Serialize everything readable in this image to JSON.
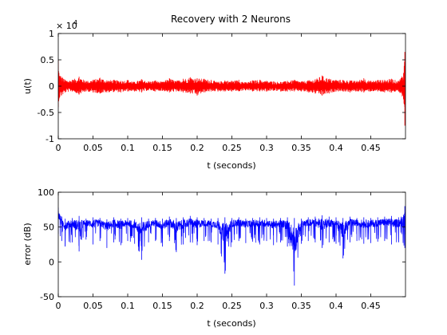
{
  "chart_data": [
    {
      "type": "line",
      "title": "Recovery with 2 Neurons",
      "xlabel": "t (seconds)",
      "ylabel": "u(t)",
      "y_scale_note": "× 10",
      "y_scale_exponent": "4",
      "xlim": [
        0,
        0.5
      ],
      "ylim": [
        -1,
        1
      ],
      "xticks": [
        0,
        0.05,
        0.1,
        0.15,
        0.2,
        0.25,
        0.3,
        0.35,
        0.4,
        0.45
      ],
      "xtick_labels": [
        "0",
        "0.05",
        "0.1",
        "0.15",
        "0.2",
        "0.25",
        "0.3",
        "0.35",
        "0.4",
        "0.45"
      ],
      "yticks": [
        -1,
        -0.5,
        0,
        0.5,
        1
      ],
      "ytick_labels": [
        "-1",
        "-0.5",
        "0",
        "0.5",
        "1"
      ],
      "color": "#ff0000",
      "series": [
        {
          "x": [
            0,
            0.001,
            0.01,
            0.02,
            0.03,
            0.04,
            0.05,
            0.06,
            0.07,
            0.08,
            0.09,
            0.1,
            0.11,
            0.12,
            0.13,
            0.14,
            0.15,
            0.16,
            0.17,
            0.18,
            0.19,
            0.2,
            0.21,
            0.22,
            0.23,
            0.24,
            0.25,
            0.26,
            0.27,
            0.28,
            0.29,
            0.3,
            0.31,
            0.32,
            0.33,
            0.34,
            0.35,
            0.36,
            0.37,
            0.38,
            0.39,
            0.4,
            0.41,
            0.42,
            0.43,
            0.44,
            0.45,
            0.46,
            0.47,
            0.48,
            0.49,
            0.497,
            0.499
          ],
          "upper": [
            0.5,
            0.25,
            0.12,
            0.12,
            0.18,
            0.1,
            0.12,
            0.16,
            0.11,
            0.12,
            0.1,
            0.12,
            0.08,
            0.13,
            0.09,
            0.11,
            0.08,
            0.15,
            0.1,
            0.14,
            0.17,
            0.15,
            0.14,
            0.12,
            0.08,
            0.11,
            0.1,
            0.12,
            0.07,
            0.11,
            0.12,
            0.1,
            0.09,
            0.08,
            0.1,
            0.12,
            0.09,
            0.11,
            0.13,
            0.2,
            0.14,
            0.12,
            0.12,
            0.11,
            0.1,
            0.15,
            0.1,
            0.12,
            0.12,
            0.14,
            0.1,
            0.25,
            0.65
          ],
          "lower": [
            -0.4,
            -0.25,
            -0.12,
            -0.1,
            -0.16,
            -0.1,
            -0.12,
            -0.14,
            -0.12,
            -0.11,
            -0.12,
            -0.1,
            -0.1,
            -0.12,
            -0.08,
            -0.1,
            -0.09,
            -0.12,
            -0.1,
            -0.12,
            -0.14,
            -0.18,
            -0.12,
            -0.1,
            -0.1,
            -0.1,
            -0.1,
            -0.1,
            -0.08,
            -0.1,
            -0.1,
            -0.1,
            -0.09,
            -0.1,
            -0.1,
            -0.1,
            -0.1,
            -0.12,
            -0.14,
            -0.18,
            -0.14,
            -0.1,
            -0.1,
            -0.12,
            -0.1,
            -0.12,
            -0.1,
            -0.1,
            -0.12,
            -0.12,
            -0.1,
            -0.25,
            -0.75
          ]
        }
      ]
    },
    {
      "type": "line",
      "title": "",
      "xlabel": "t (seconds)",
      "ylabel": "error (dB)",
      "xlim": [
        0,
        0.5
      ],
      "ylim": [
        -50,
        100
      ],
      "xticks": [
        0,
        0.05,
        0.1,
        0.15,
        0.2,
        0.25,
        0.3,
        0.35,
        0.4,
        0.45
      ],
      "xtick_labels": [
        "0",
        "0.05",
        "0.1",
        "0.15",
        "0.2",
        "0.25",
        "0.3",
        "0.35",
        "0.4",
        "0.45"
      ],
      "yticks": [
        -50,
        0,
        50,
        100
      ],
      "ytick_labels": [
        "-50",
        "0",
        "50",
        "100"
      ],
      "color": "#0000ff",
      "series": [
        {
          "x": [
            0,
            0.005,
            0.01,
            0.02,
            0.03,
            0.04,
            0.05,
            0.06,
            0.07,
            0.08,
            0.09,
            0.1,
            0.11,
            0.12,
            0.13,
            0.14,
            0.15,
            0.16,
            0.17,
            0.18,
            0.19,
            0.2,
            0.21,
            0.22,
            0.23,
            0.24,
            0.25,
            0.26,
            0.27,
            0.28,
            0.29,
            0.3,
            0.31,
            0.32,
            0.33,
            0.34,
            0.35,
            0.36,
            0.37,
            0.38,
            0.39,
            0.4,
            0.41,
            0.42,
            0.43,
            0.44,
            0.45,
            0.46,
            0.47,
            0.48,
            0.49,
            0.499
          ],
          "upper": [
            78,
            65,
            62,
            63,
            66,
            62,
            64,
            63,
            61,
            64,
            62,
            63,
            61,
            64,
            62,
            63,
            62,
            65,
            63,
            64,
            66,
            64,
            63,
            62,
            63,
            64,
            63,
            64,
            62,
            63,
            64,
            63,
            62,
            63,
            64,
            63,
            62,
            64,
            65,
            67,
            65,
            64,
            63,
            65,
            63,
            64,
            63,
            64,
            65,
            66,
            64,
            80
          ],
          "lower": [
            40,
            30,
            22,
            28,
            15,
            32,
            25,
            30,
            20,
            28,
            24,
            30,
            26,
            3,
            28,
            30,
            22,
            30,
            14,
            25,
            28,
            24,
            30,
            28,
            25,
            -17,
            28,
            30,
            27,
            29,
            25,
            30,
            24,
            28,
            22,
            -34,
            26,
            30,
            28,
            20,
            28,
            26,
            5,
            28,
            30,
            26,
            27,
            29,
            30,
            25,
            28,
            20
          ]
        }
      ]
    }
  ]
}
